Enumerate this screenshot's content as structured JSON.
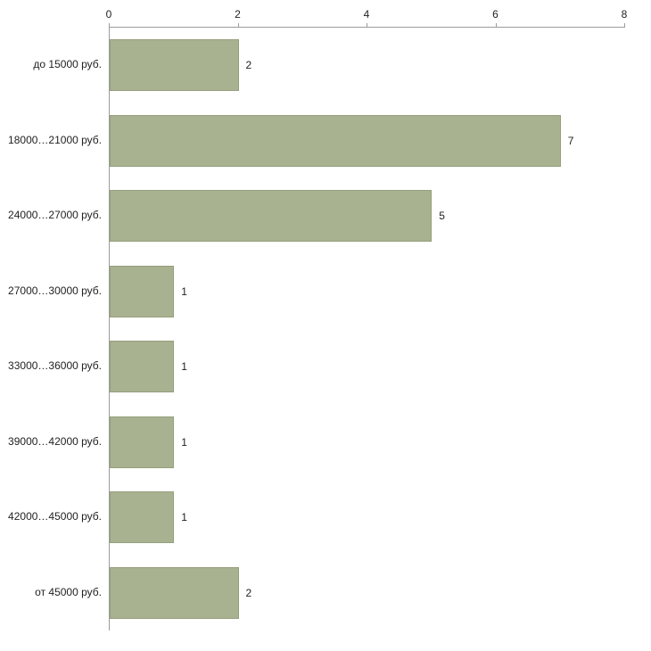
{
  "chart_data": {
    "type": "bar",
    "orientation": "horizontal",
    "title": "",
    "xlabel": "",
    "ylabel": "",
    "categories": [
      "до 15000 руб.",
      "18000…21000 руб.",
      "24000…27000 руб.",
      "27000…30000 руб.",
      "33000…36000 руб.",
      "39000…42000 руб.",
      "42000…45000 руб.",
      "от 45000 руб."
    ],
    "values": [
      2,
      7,
      5,
      1,
      1,
      1,
      1,
      2
    ],
    "value_labels": [
      "2",
      "7",
      "5",
      "1",
      "1",
      "1",
      "1",
      "2"
    ],
    "xlim": [
      0,
      8
    ],
    "x_ticks": [
      "0",
      "2",
      "4",
      "6",
      "8"
    ],
    "grid": false,
    "legend": false,
    "bar_color": "#a8b190",
    "bar_border_color": "#95a07c",
    "axis_color": "#9c9c9c",
    "text_color": "#222222",
    "background_color": "#ffffff"
  }
}
